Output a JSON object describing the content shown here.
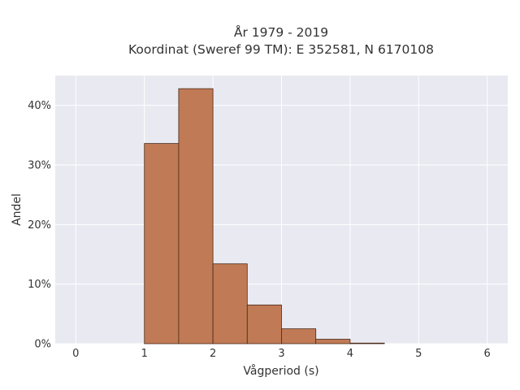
{
  "chart_data": {
    "type": "bar",
    "title_lines": [
      "År 1979 - 2019",
      "Koordinat (Sweref 99 TM): E 352581, N 6170108"
    ],
    "xlabel": "Vågperiod (s)",
    "ylabel": "Andel",
    "xlim": [
      -0.3,
      6.3
    ],
    "ylim": [
      0,
      45
    ],
    "x_ticks": [
      0,
      1,
      2,
      3,
      4,
      5,
      6
    ],
    "y_ticks": [
      0,
      10,
      20,
      30,
      40
    ],
    "y_tick_labels": [
      "0%",
      "10%",
      "20%",
      "30%",
      "40%"
    ],
    "bins": [
      {
        "x0": 1.0,
        "x1": 1.5,
        "value": 33.6
      },
      {
        "x0": 1.5,
        "x1": 2.0,
        "value": 42.8
      },
      {
        "x0": 2.0,
        "x1": 2.5,
        "value": 13.4
      },
      {
        "x0": 2.5,
        "x1": 3.0,
        "value": 6.5
      },
      {
        "x0": 3.0,
        "x1": 3.5,
        "value": 2.5
      },
      {
        "x0": 3.5,
        "x1": 4.0,
        "value": 0.75
      },
      {
        "x0": 4.0,
        "x1": 4.5,
        "value": 0.1
      }
    ],
    "grid": true,
    "colors": {
      "bar_fill": "#c07a55",
      "bar_stroke": "#4a2a18",
      "plot_bg": "#e9e9f2",
      "grid": "#ffffff"
    }
  }
}
